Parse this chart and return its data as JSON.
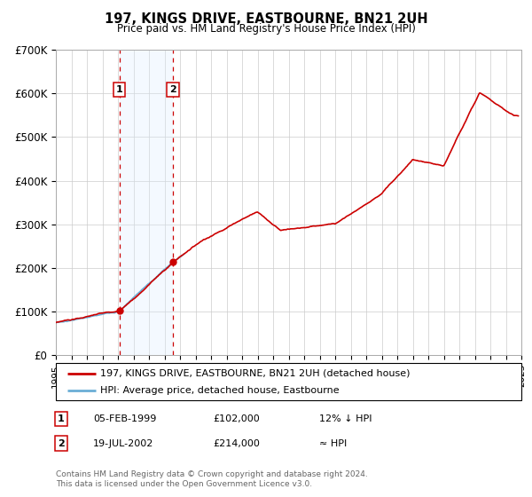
{
  "title": "197, KINGS DRIVE, EASTBOURNE, BN21 2UH",
  "subtitle": "Price paid vs. HM Land Registry's House Price Index (HPI)",
  "legend_line1": "197, KINGS DRIVE, EASTBOURNE, BN21 2UH (detached house)",
  "legend_line2": "HPI: Average price, detached house, Eastbourne",
  "footer1": "Contains HM Land Registry data © Crown copyright and database right 2024.",
  "footer2": "This data is licensed under the Open Government Licence v3.0.",
  "transaction1_label": "1",
  "transaction1_date": "05-FEB-1999",
  "transaction1_price": "£102,000",
  "transaction1_hpi": "12% ↓ HPI",
  "transaction2_label": "2",
  "transaction2_date": "19-JUL-2002",
  "transaction2_price": "£214,000",
  "transaction2_hpi": "≈ HPI",
  "hpi_color": "#6baed6",
  "price_color": "#cc0000",
  "marker_color": "#cc0000",
  "shading_color": "#ddeeff",
  "dashed_color": "#cc0000",
  "background_color": "#ffffff",
  "grid_color": "#cccccc",
  "ylim_max": 700000,
  "transaction1_x": 1999.1,
  "transaction1_y": 102000,
  "transaction2_x": 2002.55,
  "transaction2_y": 214000,
  "xmin": 1995,
  "xmax": 2025,
  "yticks": [
    0,
    100000,
    200000,
    300000,
    400000,
    500000,
    600000,
    700000
  ],
  "ylabels": [
    "£0",
    "£100K",
    "£200K",
    "£300K",
    "£400K",
    "£500K",
    "£600K",
    "£700K"
  ]
}
